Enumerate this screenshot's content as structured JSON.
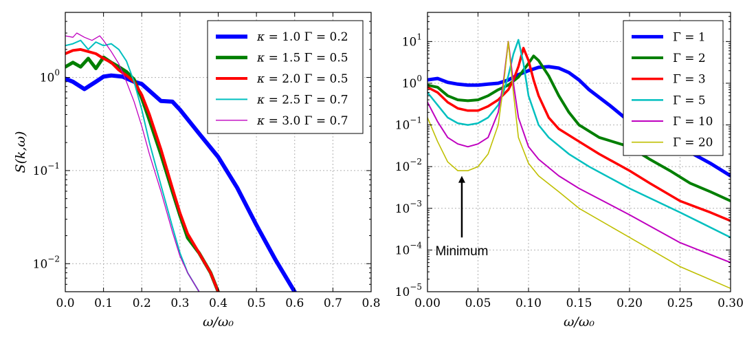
{
  "chart_data": [
    {
      "type": "line",
      "yscale": "log",
      "xlabel": "ω/ω₀",
      "ylabel": "S(k,ω)",
      "xlim": [
        0.0,
        0.8
      ],
      "ylim": [
        0.005,
        5.0
      ],
      "grid": true,
      "legend_position": "top-right",
      "xticks": [
        0.0,
        0.1,
        0.2,
        0.3,
        0.4,
        0.5,
        0.6,
        0.7,
        0.8
      ],
      "xtick_labels": [
        "0.0",
        "0.1",
        "0.2",
        "0.3",
        "0.4",
        "0.5",
        "0.6",
        "0.7",
        "0.8"
      ],
      "yticks": [
        {
          "value": 0.01,
          "base": "10",
          "exp": "−2"
        },
        {
          "value": 0.1,
          "base": "10",
          "exp": "−1"
        },
        {
          "value": 1.0,
          "base": "10",
          "exp": "0"
        }
      ],
      "series": [
        {
          "name": "κ = 1.0 Γ = 0.2",
          "color": "#0000ff",
          "width": 6,
          "x": [
            0.0,
            0.02,
            0.05,
            0.08,
            0.1,
            0.12,
            0.15,
            0.18,
            0.2,
            0.25,
            0.28,
            0.3,
            0.35,
            0.4,
            0.45,
            0.5,
            0.55,
            0.6
          ],
          "y": [
            0.97,
            0.9,
            0.75,
            0.9,
            1.02,
            1.05,
            1.02,
            0.9,
            0.85,
            0.56,
            0.55,
            0.45,
            0.25,
            0.14,
            0.065,
            0.026,
            0.011,
            0.005
          ]
        },
        {
          "name": "κ = 1.5 Γ = 0.5",
          "color": "#007f00",
          "width": 5,
          "x": [
            0.0,
            0.02,
            0.04,
            0.06,
            0.08,
            0.1,
            0.12,
            0.14,
            0.16,
            0.18,
            0.2,
            0.22,
            0.25,
            0.28,
            0.3,
            0.32,
            0.35,
            0.38,
            0.4
          ],
          "y": [
            1.3,
            1.45,
            1.3,
            1.6,
            1.25,
            1.65,
            1.45,
            1.3,
            1.15,
            0.95,
            0.6,
            0.35,
            0.15,
            0.06,
            0.033,
            0.019,
            0.013,
            0.008,
            0.005
          ]
        },
        {
          "name": "κ = 2.0 Γ = 0.5",
          "color": "#ff0000",
          "width": 4,
          "x": [
            0.0,
            0.02,
            0.04,
            0.06,
            0.08,
            0.1,
            0.12,
            0.14,
            0.16,
            0.18,
            0.2,
            0.22,
            0.25,
            0.28,
            0.3,
            0.32,
            0.35,
            0.38,
            0.4
          ],
          "y": [
            1.8,
            1.95,
            2.0,
            1.9,
            1.8,
            1.6,
            1.45,
            1.2,
            1.05,
            0.9,
            0.65,
            0.4,
            0.17,
            0.065,
            0.035,
            0.021,
            0.013,
            0.008,
            0.005
          ]
        },
        {
          "name": "κ = 2.5 Γ = 0.7",
          "color": "#00bfbf",
          "width": 2,
          "x": [
            0.0,
            0.02,
            0.04,
            0.06,
            0.08,
            0.1,
            0.12,
            0.14,
            0.16,
            0.18,
            0.2,
            0.22,
            0.25,
            0.28,
            0.3,
            0.32,
            0.35
          ],
          "y": [
            2.2,
            2.3,
            2.5,
            2.0,
            2.4,
            2.2,
            2.3,
            2.0,
            1.5,
            0.9,
            0.45,
            0.2,
            0.07,
            0.025,
            0.013,
            0.008,
            0.005
          ]
        },
        {
          "name": "κ = 3.0 Γ = 0.7",
          "color": "#bf00bf",
          "width": 1.3,
          "x": [
            0.0,
            0.02,
            0.03,
            0.05,
            0.07,
            0.09,
            0.1,
            0.12,
            0.14,
            0.16,
            0.18,
            0.2,
            0.22,
            0.25,
            0.28,
            0.3,
            0.32,
            0.35
          ],
          "y": [
            2.8,
            2.7,
            3.0,
            2.7,
            2.5,
            2.8,
            2.5,
            1.9,
            1.4,
            0.9,
            0.55,
            0.3,
            0.15,
            0.06,
            0.022,
            0.012,
            0.008,
            0.005
          ]
        }
      ]
    },
    {
      "type": "line",
      "yscale": "log",
      "xlabel": "ω/ω₀",
      "ylabel": "",
      "xlim": [
        0.0,
        0.3
      ],
      "ylim": [
        1e-05,
        50.0
      ],
      "grid": true,
      "legend_position": "top-right",
      "xticks": [
        0.0,
        0.05,
        0.1,
        0.15,
        0.2,
        0.25,
        0.3
      ],
      "xtick_labels": [
        "0.00",
        "0.05",
        "0.10",
        "0.15",
        "0.20",
        "0.25",
        "0.30"
      ],
      "yticks": [
        {
          "value": 1e-05,
          "base": "10",
          "exp": "−5"
        },
        {
          "value": 0.0001,
          "base": "10",
          "exp": "−4"
        },
        {
          "value": 0.001,
          "base": "10",
          "exp": "−3"
        },
        {
          "value": 0.01,
          "base": "10",
          "exp": "−2"
        },
        {
          "value": 0.1,
          "base": "10",
          "exp": "−1"
        },
        {
          "value": 1.0,
          "base": "10",
          "exp": "0"
        },
        {
          "value": 10.0,
          "base": "10",
          "exp": "1"
        }
      ],
      "annotation": {
        "text": "Minimum",
        "x": 0.034,
        "y_from": 0.0002,
        "y_to": 0.006
      },
      "series": [
        {
          "name": "Γ = 1",
          "color": "#0000ff",
          "width": 5,
          "x": [
            0.0,
            0.01,
            0.02,
            0.03,
            0.04,
            0.05,
            0.06,
            0.07,
            0.08,
            0.09,
            0.1,
            0.11,
            0.12,
            0.13,
            0.14,
            0.15,
            0.16,
            0.18,
            0.2,
            0.22,
            0.24,
            0.26,
            0.28,
            0.3
          ],
          "y": [
            1.2,
            1.3,
            1.05,
            0.95,
            0.9,
            0.9,
            0.95,
            1.0,
            1.2,
            1.6,
            2.0,
            2.4,
            2.5,
            2.3,
            1.8,
            1.2,
            0.7,
            0.3,
            0.12,
            0.06,
            0.035,
            0.022,
            0.012,
            0.006
          ]
        },
        {
          "name": "Γ = 2",
          "color": "#007f00",
          "width": 4,
          "x": [
            0.0,
            0.01,
            0.02,
            0.03,
            0.04,
            0.05,
            0.06,
            0.07,
            0.08,
            0.09,
            0.1,
            0.105,
            0.11,
            0.12,
            0.13,
            0.14,
            0.15,
            0.17,
            0.2,
            0.22,
            0.24,
            0.26,
            0.28,
            0.3
          ],
          "y": [
            0.9,
            0.8,
            0.5,
            0.4,
            0.38,
            0.4,
            0.5,
            0.7,
            0.9,
            1.4,
            3.0,
            4.5,
            3.5,
            1.5,
            0.5,
            0.2,
            0.1,
            0.05,
            0.03,
            0.015,
            0.008,
            0.004,
            0.0025,
            0.0015
          ]
        },
        {
          "name": "Γ = 3",
          "color": "#ff0000",
          "width": 3.5,
          "x": [
            0.0,
            0.01,
            0.02,
            0.03,
            0.04,
            0.05,
            0.06,
            0.07,
            0.08,
            0.085,
            0.09,
            0.095,
            0.1,
            0.105,
            0.11,
            0.12,
            0.13,
            0.15,
            0.17,
            0.2,
            0.22,
            0.25,
            0.28,
            0.3
          ],
          "y": [
            0.8,
            0.6,
            0.35,
            0.25,
            0.22,
            0.22,
            0.28,
            0.4,
            0.7,
            1.2,
            2.5,
            7.0,
            3.5,
            1.2,
            0.5,
            0.15,
            0.08,
            0.04,
            0.02,
            0.008,
            0.004,
            0.0015,
            0.0008,
            0.0005
          ]
        },
        {
          "name": "Γ = 5",
          "color": "#00bfbf",
          "width": 2.5,
          "x": [
            0.0,
            0.01,
            0.02,
            0.03,
            0.04,
            0.05,
            0.06,
            0.07,
            0.075,
            0.08,
            0.085,
            0.09,
            0.095,
            0.1,
            0.11,
            0.12,
            0.14,
            0.16,
            0.2,
            0.25,
            0.3
          ],
          "y": [
            0.6,
            0.3,
            0.15,
            0.11,
            0.1,
            0.11,
            0.15,
            0.3,
            0.6,
            1.5,
            5.0,
            11.0,
            3.0,
            0.5,
            0.1,
            0.05,
            0.02,
            0.01,
            0.003,
            0.0008,
            0.0002
          ]
        },
        {
          "name": "Γ = 10",
          "color": "#bf00bf",
          "width": 2,
          "x": [
            0.0,
            0.01,
            0.02,
            0.03,
            0.04,
            0.05,
            0.06,
            0.07,
            0.075,
            0.08,
            0.085,
            0.09,
            0.1,
            0.11,
            0.13,
            0.15,
            0.2,
            0.25,
            0.3
          ],
          "y": [
            0.35,
            0.12,
            0.05,
            0.035,
            0.03,
            0.035,
            0.05,
            0.2,
            1.0,
            10.0,
            1.0,
            0.15,
            0.03,
            0.015,
            0.006,
            0.003,
            0.0007,
            0.00015,
            5e-05
          ]
        },
        {
          "name": "Γ = 20",
          "color": "#bfbf00",
          "width": 1.6,
          "x": [
            0.0,
            0.01,
            0.02,
            0.03,
            0.04,
            0.05,
            0.06,
            0.07,
            0.075,
            0.08,
            0.085,
            0.09,
            0.1,
            0.11,
            0.13,
            0.15,
            0.2,
            0.25,
            0.3
          ],
          "y": [
            0.15,
            0.04,
            0.013,
            0.008,
            0.008,
            0.01,
            0.02,
            0.1,
            0.8,
            10.0,
            0.6,
            0.05,
            0.012,
            0.006,
            0.0025,
            0.001,
            0.0002,
            4e-05,
            1.2e-05
          ]
        }
      ]
    }
  ]
}
